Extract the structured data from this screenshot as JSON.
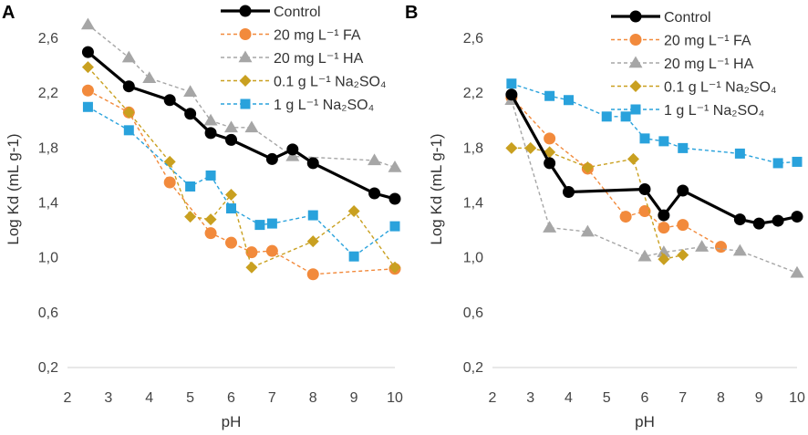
{
  "chart_data": [
    {
      "panel": "A",
      "type": "line",
      "xlabel": "pH",
      "ylabel": "Log Kd (mL g-1)",
      "xlim": [
        2,
        10
      ],
      "ylim": [
        0.2,
        2.8
      ],
      "xticks": [
        "2",
        "3",
        "4",
        "5",
        "6",
        "7",
        "8",
        "9",
        "10"
      ],
      "yticks": [
        "0,2",
        "0,6",
        "1,0",
        "1,4",
        "1,8",
        "2,2",
        "2,6"
      ],
      "legend_position": "top-right",
      "series": [
        {
          "name": "Control",
          "color": "#000000",
          "dashed": false,
          "marker": "circle",
          "x": [
            2.5,
            3.5,
            4.5,
            5,
            5.5,
            6,
            7,
            7.5,
            8,
            9.5,
            10
          ],
          "y": [
            2.5,
            2.25,
            2.15,
            2.05,
            1.91,
            1.86,
            1.72,
            1.79,
            1.69,
            1.47,
            1.43
          ]
        },
        {
          "name": "20 mg L⁻¹ FA",
          "color": "#F28A3C",
          "dashed": true,
          "marker": "circle",
          "x": [
            2.5,
            3.5,
            4.5,
            5.5,
            6,
            6.5,
            7,
            8,
            10
          ],
          "y": [
            2.22,
            2.06,
            1.55,
            1.18,
            1.11,
            1.04,
            1.05,
            0.88,
            0.92
          ]
        },
        {
          "name": "20 mg L⁻¹ HA",
          "color": "#A6A6A6",
          "dashed": true,
          "marker": "triangle",
          "x": [
            2.5,
            3.5,
            4,
            5,
            5.5,
            6,
            6.5,
            7.5,
            9.5,
            10
          ],
          "y": [
            2.7,
            2.46,
            2.31,
            2.21,
            2.0,
            1.95,
            1.95,
            1.74,
            1.71,
            1.66
          ]
        },
        {
          "name": "0.1 g L⁻¹  Na₂SO₄",
          "color": "#C9A020",
          "dashed": true,
          "marker": "diamond",
          "x": [
            2.5,
            3.5,
            4.5,
            5,
            5.5,
            6,
            6.5,
            8,
            9,
            10
          ],
          "y": [
            2.39,
            2.06,
            1.7,
            1.3,
            1.28,
            1.46,
            0.93,
            1.12,
            1.34,
            0.93
          ]
        },
        {
          "name": "1 g L⁻¹  Na₂SO₄",
          "color": "#29A2DC",
          "dashed": true,
          "marker": "square",
          "x": [
            2.5,
            3.5,
            5,
            5.5,
            6,
            6.7,
            7,
            8,
            9,
            10
          ],
          "y": [
            2.1,
            1.93,
            1.52,
            1.6,
            1.36,
            1.24,
            1.25,
            1.31,
            1.01,
            1.23
          ]
        }
      ]
    },
    {
      "panel": "B",
      "type": "line",
      "xlabel": "pH",
      "ylabel": "Log Kd (mL g-1)",
      "xlim": [
        2,
        10
      ],
      "ylim": [
        0.2,
        2.8
      ],
      "xticks": [
        "2",
        "3",
        "4",
        "5",
        "6",
        "7",
        "8",
        "9",
        "10"
      ],
      "yticks": [
        "0,2",
        "0,6",
        "1,0",
        "1,4",
        "1,8",
        "2,2",
        "2,6"
      ],
      "legend_position": "top-right",
      "series": [
        {
          "name": "Control",
          "color": "#000000",
          "dashed": false,
          "marker": "circle",
          "x": [
            2.5,
            3.5,
            4,
            6,
            6.5,
            7,
            8.5,
            9,
            9.5,
            10
          ],
          "y": [
            2.19,
            1.69,
            1.48,
            1.5,
            1.31,
            1.49,
            1.28,
            1.25,
            1.27,
            1.3
          ]
        },
        {
          "name": "20 mg L⁻¹ FA",
          "color": "#F28A3C",
          "dashed": true,
          "marker": "circle",
          "x": [
            2.5,
            3.5,
            4.5,
            5.5,
            6,
            6.5,
            7,
            8
          ],
          "y": [
            2.17,
            1.87,
            1.65,
            1.3,
            1.34,
            1.22,
            1.24,
            1.08
          ]
        },
        {
          "name": "20 mg L⁻¹  HA",
          "color": "#A6A6A6",
          "dashed": true,
          "marker": "triangle",
          "x": [
            2.5,
            3.5,
            4.5,
            6,
            6.5,
            7.5,
            8.5,
            10
          ],
          "y": [
            2.15,
            1.22,
            1.19,
            1.01,
            1.04,
            1.08,
            1.05,
            0.89
          ]
        },
        {
          "name": "0.1 g L⁻¹  Na₂SO₄",
          "color": "#C9A020",
          "dashed": true,
          "marker": "diamond",
          "x": [
            2.5,
            3,
            3.5,
            4.5,
            5.7,
            6.5,
            7
          ],
          "y": [
            1.8,
            1.8,
            1.77,
            1.66,
            1.72,
            0.99,
            1.02
          ]
        },
        {
          "name": "1 g L⁻¹  Na₂SO₄",
          "color": "#29A2DC",
          "dashed": true,
          "marker": "square",
          "x": [
            2.5,
            3.5,
            4,
            5,
            5.5,
            6,
            6.5,
            7,
            8.5,
            9.5,
            10
          ],
          "y": [
            2.27,
            2.18,
            2.15,
            2.03,
            2.03,
            1.87,
            1.85,
            1.8,
            1.76,
            1.69,
            1.7
          ]
        }
      ]
    }
  ]
}
